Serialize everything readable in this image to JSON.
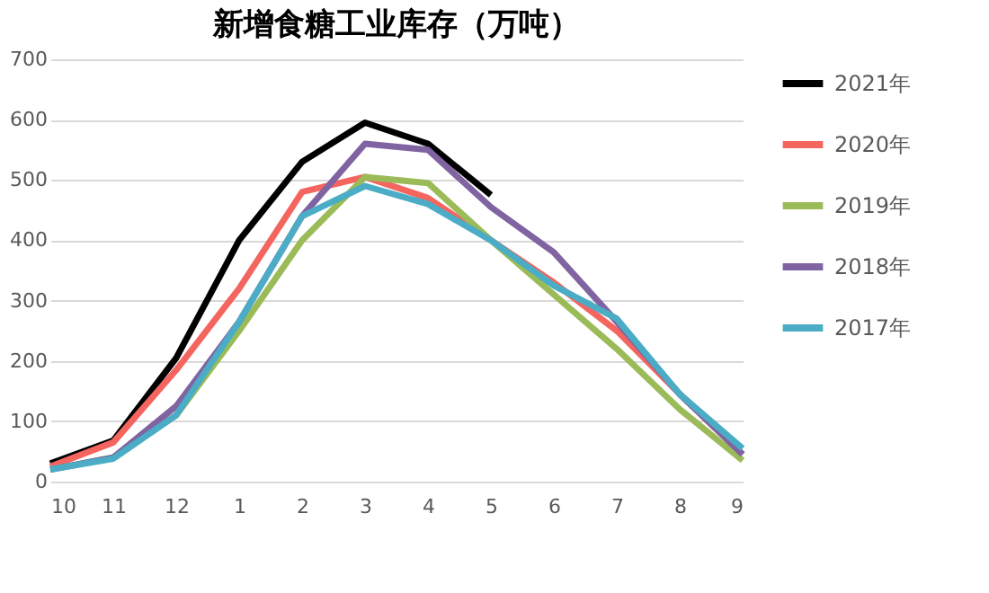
{
  "chart_data": {
    "type": "line",
    "title": "新增食糖工业库存（万吨）",
    "categories": [
      "10",
      "11",
      "12",
      "1",
      "2",
      "3",
      "4",
      "5",
      "6",
      "7",
      "8",
      "9"
    ],
    "series": [
      {
        "name": "2021年",
        "color": "#000000",
        "values": [
          30,
          68,
          205,
          400,
          530,
          595,
          560,
          475,
          null,
          null,
          null,
          null
        ]
      },
      {
        "name": "2020年",
        "color": "#f4655f",
        "values": [
          25,
          65,
          185,
          320,
          480,
          505,
          470,
          400,
          330,
          250,
          145,
          45
        ]
      },
      {
        "name": "2019年",
        "color": "#9bbb59",
        "values": [
          20,
          40,
          110,
          250,
          400,
          505,
          495,
          400,
          310,
          220,
          120,
          35
        ]
      },
      {
        "name": "2018年",
        "color": "#8064a2",
        "values": [
          20,
          40,
          125,
          265,
          440,
          560,
          550,
          455,
          380,
          265,
          145,
          45
        ]
      },
      {
        "name": "2017年",
        "color": "#4bacc6",
        "values": [
          20,
          38,
          110,
          265,
          440,
          490,
          460,
          400,
          325,
          270,
          145,
          55
        ]
      }
    ],
    "ylim": [
      0,
      700
    ],
    "yticks": [
      0,
      100,
      200,
      300,
      400,
      500,
      600,
      700
    ],
    "grid": "y",
    "legend": "right",
    "marker": "none",
    "line_style": "solid"
  }
}
